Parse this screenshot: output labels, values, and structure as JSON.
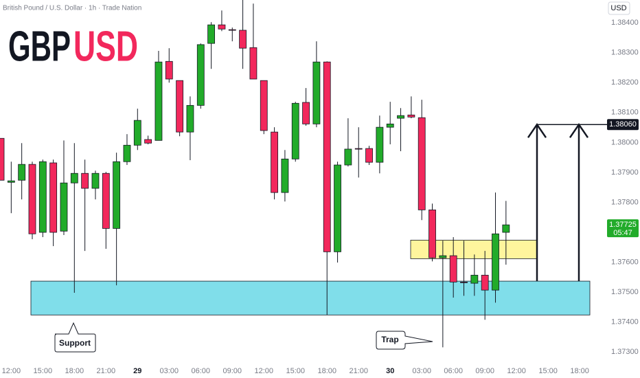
{
  "chart_data": {
    "type": "candlestick",
    "title": "British Pound / U.S. Dollar · 1h · Trade Nation",
    "logo": [
      "GBP",
      "USD"
    ],
    "currency": "USD",
    "categories": [
      null,
      "12:00",
      null,
      null,
      "15:00",
      null,
      null,
      "18:00",
      null,
      null,
      "21:00",
      null,
      null,
      "29",
      null,
      null,
      "03:00",
      null,
      null,
      "06:00",
      null,
      null,
      "09:00",
      null,
      null,
      "12:00",
      null,
      null,
      "15:00",
      null,
      null,
      "18:00",
      null,
      null,
      "21:00",
      null,
      null,
      "30",
      null,
      null,
      "03:00",
      null,
      null,
      "06:00",
      null,
      null,
      "09:00",
      null,
      null,
      "12:00",
      null,
      null,
      "15:00",
      null,
      null,
      "18:00",
      null
    ],
    "open": [
      1.38014,
      1.37867,
      1.37874,
      1.37927,
      1.377,
      1.37932,
      1.37704,
      1.37865,
      1.37897,
      1.37847,
      1.37897,
      1.37713,
      1.37936,
      1.37991,
      1.3801,
      1.38007,
      1.38271,
      1.38207,
      1.38035,
      1.38124,
      1.38331,
      1.38393,
      1.38377,
      1.38375,
      1.38317,
      1.38207,
      1.38035,
      1.37833,
      1.37945,
      1.38134,
      1.38062,
      1.38269,
      1.37635,
      1.37925,
      1.3798,
      1.3798,
      1.37934,
      1.38051,
      1.38081,
      1.38092,
      1.38083,
      1.37775,
      1.37615,
      1.37622,
      1.37534,
      1.3753,
      1.37557,
      1.37507,
      1.377,
      null,
      null,
      null,
      null,
      null,
      null,
      null,
      null
    ],
    "high": [
      1.38014,
      1.37936,
      1.37998,
      1.37936,
      1.37943,
      1.37943,
      1.38007,
      1.37998,
      1.37943,
      1.37906,
      1.37902,
      1.37966,
      1.38028,
      1.38113,
      1.38023,
      1.38306,
      1.38315,
      1.38207,
      1.38154,
      1.38331,
      1.38402,
      1.38441,
      1.38384,
      1.38476,
      1.38464,
      1.38207,
      1.38051,
      1.37975,
      1.38136,
      1.38182,
      1.38338,
      1.38271,
      1.37936,
      1.38081,
      1.38051,
      1.37989,
      1.3809,
      1.38136,
      1.38115,
      1.38154,
      1.38143,
      1.37796,
      1.37672,
      1.37684,
      1.37672,
      1.37626,
      1.37638,
      1.37833,
      1.37805,
      null,
      null,
      null,
      null,
      null,
      null,
      null,
      null
    ],
    "low": [
      1.37874,
      1.37764,
      1.3781,
      1.37677,
      1.37684,
      1.37654,
      1.37691,
      1.37498,
      1.37638,
      1.3781,
      1.37645,
      1.37523,
      1.37925,
      1.37975,
      1.37994,
      1.38007,
      1.382,
      1.38021,
      1.37941,
      1.38113,
      1.38246,
      1.38372,
      1.38338,
      1.38246,
      1.38212,
      1.38028,
      1.3781,
      1.37803,
      1.37936,
      1.38056,
      1.38051,
      1.37424,
      1.37599,
      1.3792,
      1.37883,
      1.37925,
      1.37897,
      1.37994,
      1.37971,
      1.38081,
      1.37741,
      1.37603,
      1.37316,
      1.37482,
      1.37488,
      1.37488,
      1.37408,
      1.37465,
      1.37592,
      null,
      null,
      null,
      null,
      null,
      null,
      null,
      null
    ],
    "close": [
      1.37874,
      1.37872,
      1.37927,
      1.37695,
      1.37936,
      1.377,
      1.37865,
      1.37897,
      1.37847,
      1.37897,
      1.37713,
      1.37936,
      1.37991,
      1.38074,
      1.37998,
      1.38269,
      1.38212,
      1.38035,
      1.38124,
      1.38327,
      1.38393,
      1.38379,
      1.38375,
      1.38315,
      1.38212,
      1.3804,
      1.37833,
      1.37945,
      1.38131,
      1.38062,
      1.38269,
      1.37635,
      1.37925,
      1.37978,
      1.37978,
      1.37934,
      1.38051,
      1.38062,
      1.3809,
      1.38085,
      1.37775,
      1.37615,
      1.37622,
      1.37534,
      1.37532,
      1.37557,
      1.37507,
      1.37695,
      1.37725,
      null,
      null,
      null,
      null,
      null,
      null,
      null,
      null
    ],
    "up_color": "#22ab2a",
    "down_color": "#f2285c",
    "ylim": [
      1.37264,
      1.38476
    ],
    "yticks": [
      {
        "value": 1.384,
        "label": "1.38400"
      },
      {
        "value": 1.383,
        "label": "1.38300"
      },
      {
        "value": 1.382,
        "label": "1.38200"
      },
      {
        "value": 1.381,
        "label": "1.38100"
      },
      {
        "value": 1.38,
        "label": "1.38000"
      },
      {
        "value": 1.379,
        "label": "1.37900"
      },
      {
        "value": 1.378,
        "label": "1.37800"
      },
      {
        "value": 1.377,
        "label": "1.37700"
      },
      {
        "value": 1.376,
        "label": "1.37600"
      },
      {
        "value": 1.375,
        "label": "1.37500"
      },
      {
        "value": 1.374,
        "label": "1.37400"
      },
      {
        "value": 1.373,
        "label": "1.37300"
      }
    ],
    "zones": [
      {
        "low": 1.37424,
        "high": 1.37537,
        "color": "#80deea"
      },
      {
        "low": 1.37612,
        "high": 1.37674,
        "color": "#fff59d"
      }
    ],
    "target": {
      "value": 1.3806,
      "label": "1.38060"
    },
    "last_price": 1.37725,
    "countdown": "05:47",
    "annotations": [
      "Support",
      "Trap"
    ]
  }
}
